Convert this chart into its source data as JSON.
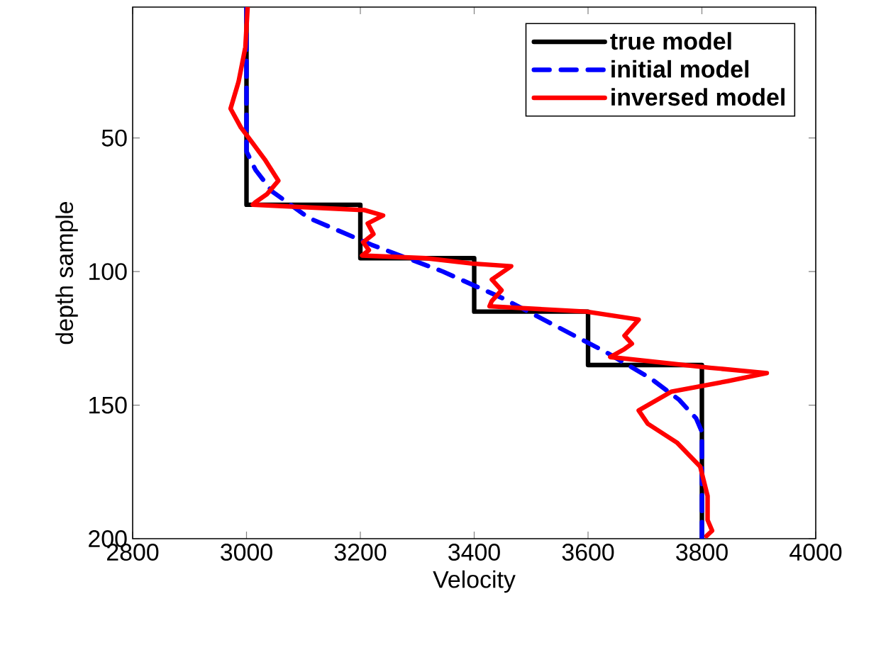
{
  "chart_data": {
    "type": "line",
    "xlabel": "Velocity",
    "ylabel": "depth sample",
    "xlim": [
      2800,
      4000
    ],
    "ylim": [
      200,
      1
    ],
    "xticks": [
      2800,
      3000,
      3200,
      3400,
      3600,
      3800,
      4000
    ],
    "yticks": [
      50,
      100,
      150,
      200
    ],
    "legend": "top right",
    "series": [
      {
        "name": "true model",
        "color": "#000000",
        "line_style": "solid",
        "x": [
          3000,
          3000,
          3200,
          3200,
          3400,
          3400,
          3600,
          3600,
          3800,
          3800
        ],
        "values": [
          1,
          75,
          75,
          95,
          95,
          115,
          115,
          135,
          135,
          200
        ]
      },
      {
        "name": "initial model",
        "color": "#0000ff",
        "line_style": "dashed",
        "x": [
          3000,
          3000,
          3016,
          3045,
          3110,
          3220,
          3345,
          3450,
          3540,
          3630,
          3710,
          3760,
          3790,
          3800,
          3800
        ],
        "values": [
          1,
          55,
          62,
          70,
          80,
          90,
          100,
          110,
          120,
          130,
          140,
          148,
          155,
          160,
          200
        ]
      },
      {
        "name": "inversed model",
        "color": "#ff0000",
        "line_style": "solid",
        "x": [
          3002,
          2998,
          2986,
          2972,
          2990,
          3011,
          3032,
          3056,
          3036,
          3016,
          3011,
          3207,
          3240,
          3213,
          3223,
          3205,
          3215,
          3203,
          3315,
          3397,
          3465,
          3431,
          3448,
          3431,
          3427,
          3597,
          3689,
          3664,
          3677,
          3664,
          3639,
          3814,
          3914,
          3846,
          3746,
          3689,
          3705,
          3756,
          3797,
          3810,
          3810,
          3818,
          3808
        ],
        "values": [
          1,
          16,
          29,
          39,
          46,
          52,
          58,
          66,
          71,
          74,
          75,
          77,
          79,
          82,
          86,
          89,
          92,
          94,
          95,
          97,
          98,
          103,
          107,
          111,
          113,
          115,
          118,
          124,
          127,
          129,
          132,
          136,
          138,
          141,
          145,
          152,
          157,
          164,
          173,
          184,
          193,
          197,
          199
        ]
      }
    ]
  }
}
